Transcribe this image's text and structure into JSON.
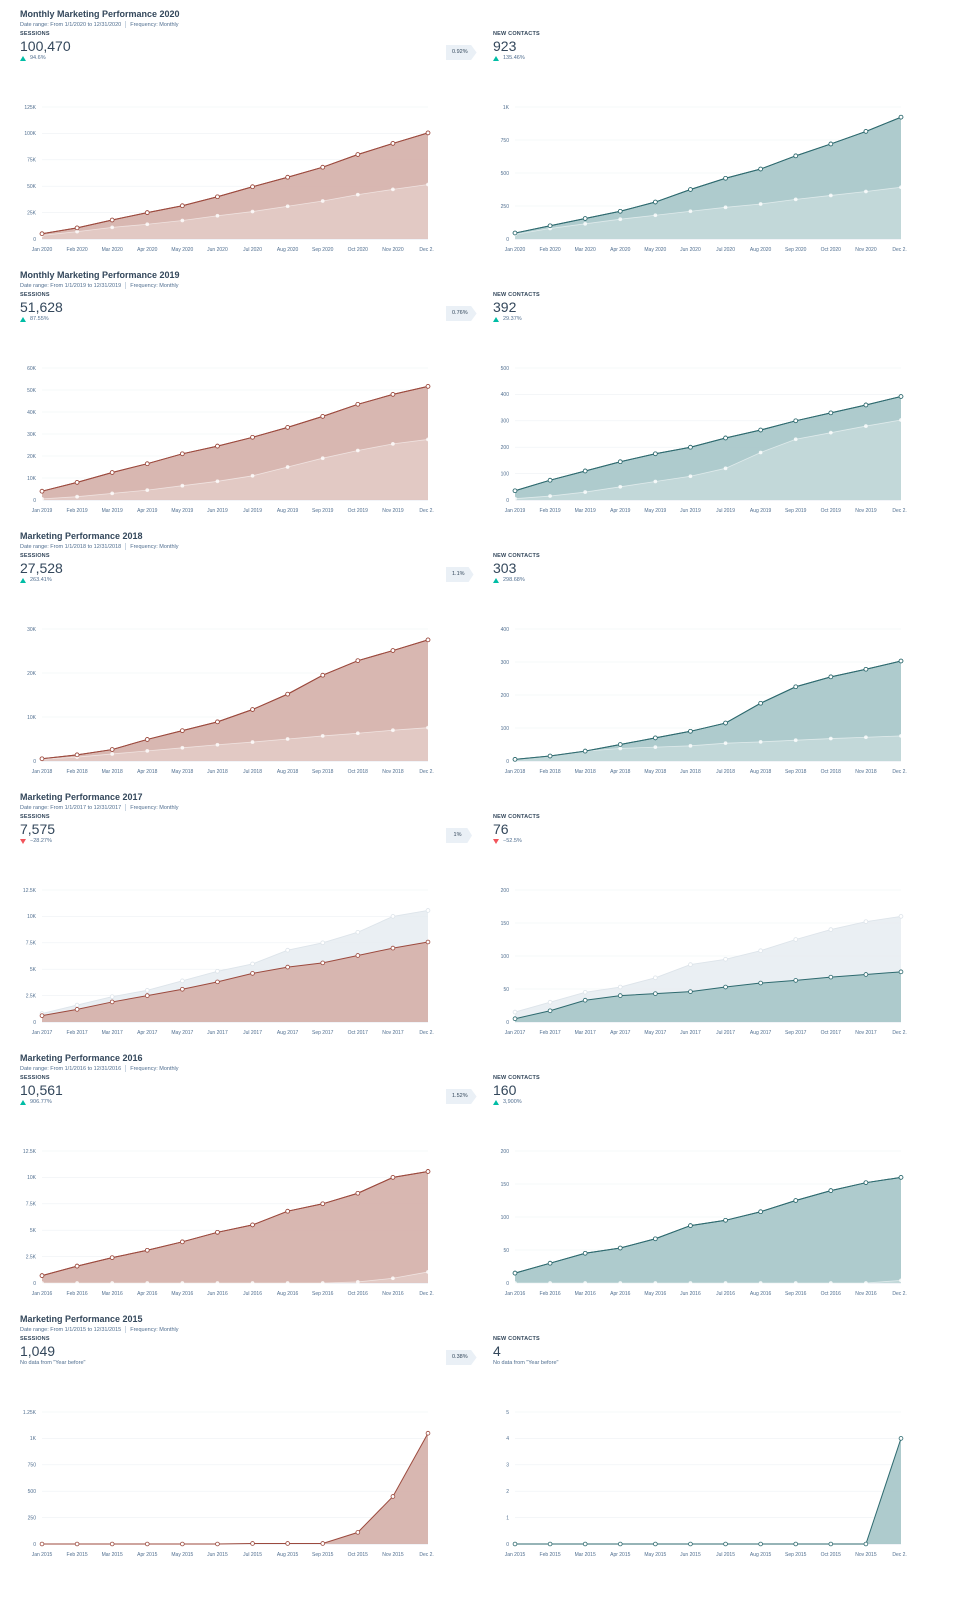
{
  "sections": [
    {
      "title": "Monthly Marketing Performance 2020",
      "date_range": "Date range: From 1/1/2020 to 12/31/2020",
      "frequency": "Frequency: Monthly",
      "badge": "0.92%",
      "left": {
        "label": "SESSIONS",
        "value": "100,470",
        "change": "94.6%",
        "trend": "up"
      },
      "right": {
        "label": "NEW CONTACTS",
        "value": "923",
        "change": "135.46%",
        "trend": "up"
      }
    },
    {
      "title": "Monthly Marketing Performance 2019",
      "date_range": "Date range: From 1/1/2019 to 12/31/2019",
      "frequency": "Frequency: Monthly",
      "badge": "0.76%",
      "left": {
        "label": "SESSIONS",
        "value": "51,628",
        "change": "87.55%",
        "trend": "up"
      },
      "right": {
        "label": "NEW CONTACTS",
        "value": "392",
        "change": "29.37%",
        "trend": "up"
      }
    },
    {
      "title": "Marketing Performance 2018",
      "date_range": "Date range: From 1/1/2018 to 12/31/2018",
      "frequency": "Frequency: Monthly",
      "badge": "1.1%",
      "left": {
        "label": "SESSIONS",
        "value": "27,528",
        "change": "263.41%",
        "trend": "up"
      },
      "right": {
        "label": "NEW CONTACTS",
        "value": "303",
        "change": "298.68%",
        "trend": "up"
      }
    },
    {
      "title": "Marketing Performance 2017",
      "date_range": "Date range: From 1/1/2017 to 12/31/2017",
      "frequency": "Frequency: Monthly",
      "badge": "1%",
      "left": {
        "label": "SESSIONS",
        "value": "7,575",
        "change": "−28.27%",
        "trend": "down"
      },
      "right": {
        "label": "NEW CONTACTS",
        "value": "76",
        "change": "−52.5%",
        "trend": "down"
      }
    },
    {
      "title": "Marketing Performance 2016",
      "date_range": "Date range: From 1/1/2016 to 12/31/2016",
      "frequency": "Frequency: Monthly",
      "badge": "1.52%",
      "left": {
        "label": "SESSIONS",
        "value": "10,561",
        "change": "906.77%",
        "trend": "up"
      },
      "right": {
        "label": "NEW CONTACTS",
        "value": "160",
        "change": "3,900%",
        "trend": "up"
      }
    },
    {
      "title": "Marketing Performance 2015",
      "date_range": "Date range: From 1/1/2015 to 12/31/2015",
      "frequency": "Frequency: Monthly",
      "badge": "0.38%",
      "left": {
        "label": "SESSIONS",
        "value": "1,049",
        "change": "No data from \"Year before\"",
        "trend": "none"
      },
      "right": {
        "label": "NEW CONTACTS",
        "value": "4",
        "change": "No data from \"Year before\"",
        "trend": "none"
      }
    }
  ],
  "colors": {
    "sessions_line": "#9c4a3e",
    "sessions_fill": "#d5b1aa",
    "contacts_line": "#2e6a6f",
    "contacts_fill": "#a7c7c9",
    "prior_fill": "#e6ecf1",
    "prior_line": "#dde4ea",
    "text": "#33475b",
    "up": "#00bda5",
    "down": "#f2545b"
  },
  "chart_data": [
    {
      "type": "area",
      "title": "",
      "series_color": "sessions",
      "categories": [
        "Jan 2020",
        "Feb 2020",
        "Mar 2020",
        "Apr 2020",
        "May 2020",
        "Jun 2020",
        "Jul 2020",
        "Aug 2020",
        "Sep 2020",
        "Oct 2020",
        "Nov 2020",
        "Dec 2..."
      ],
      "yticks": [
        "0",
        "25K",
        "50K",
        "75K",
        "100K",
        "125K"
      ],
      "ylim": [
        0,
        125000
      ],
      "series": [
        {
          "values": [
            5000,
            10500,
            18000,
            25000,
            31500,
            40000,
            49500,
            58500,
            68000,
            80000,
            90500,
            100470
          ]
        },
        {
          "values": [
            3500,
            7000,
            11000,
            14000,
            17500,
            22000,
            26000,
            31000,
            36000,
            42000,
            47000,
            51628
          ]
        }
      ],
      "current_on_top": true
    },
    {
      "type": "area",
      "title": "",
      "series_color": "contacts",
      "categories": [
        "Jan 2020",
        "Feb 2020",
        "Mar 2020",
        "Apr 2020",
        "May 2020",
        "Jun 2020",
        "Jul 2020",
        "Aug 2020",
        "Sep 2020",
        "Oct 2020",
        "Nov 2020",
        "Dec 2..."
      ],
      "yticks": [
        "0",
        "250",
        "500",
        "750",
        "1K"
      ],
      "ylim": [
        0,
        1000
      ],
      "series": [
        {
          "values": [
            45,
            100,
            155,
            210,
            280,
            375,
            460,
            530,
            630,
            720,
            815,
            923
          ]
        },
        {
          "values": [
            35,
            80,
            115,
            150,
            180,
            210,
            240,
            265,
            300,
            330,
            360,
            392
          ]
        }
      ],
      "current_on_top": true
    },
    {
      "type": "area",
      "title": "",
      "series_color": "sessions",
      "categories": [
        "Jan 2019",
        "Feb 2019",
        "Mar 2019",
        "Apr 2019",
        "May 2019",
        "Jun 2019",
        "Jul 2019",
        "Aug 2019",
        "Sep 2019",
        "Oct 2019",
        "Nov 2019",
        "Dec 2..."
      ],
      "yticks": [
        "0",
        "10K",
        "20K",
        "30K",
        "40K",
        "50K",
        "60K"
      ],
      "ylim": [
        0,
        60000
      ],
      "series": [
        {
          "values": [
            4000,
            8000,
            12500,
            16500,
            21000,
            24500,
            28500,
            33000,
            38000,
            43500,
            48000,
            51628
          ]
        },
        {
          "values": [
            500,
            1500,
            3000,
            4500,
            6500,
            8500,
            11000,
            15000,
            19000,
            22500,
            25500,
            27528
          ]
        }
      ],
      "current_on_top": true
    },
    {
      "type": "area",
      "title": "",
      "series_color": "contacts",
      "categories": [
        "Jan 2019",
        "Feb 2019",
        "Mar 2019",
        "Apr 2019",
        "May 2019",
        "Jun 2019",
        "Jul 2019",
        "Aug 2019",
        "Sep 2019",
        "Oct 2019",
        "Nov 2019",
        "Dec 2..."
      ],
      "yticks": [
        "0",
        "100",
        "200",
        "300",
        "400",
        "500"
      ],
      "ylim": [
        0,
        500
      ],
      "series": [
        {
          "values": [
            35,
            75,
            110,
            145,
            175,
            200,
            235,
            265,
            300,
            330,
            360,
            392
          ]
        },
        {
          "values": [
            5,
            15,
            30,
            50,
            70,
            90,
            120,
            180,
            230,
            255,
            280,
            303
          ]
        }
      ],
      "current_on_top": true
    },
    {
      "type": "area",
      "title": "",
      "series_color": "sessions",
      "categories": [
        "Jan 2018",
        "Feb 2018",
        "Mar 2018",
        "Apr 2018",
        "May 2018",
        "Jun 2018",
        "Jul 2018",
        "Aug 2018",
        "Sep 2018",
        "Oct 2018",
        "Nov 2018",
        "Dec 2..."
      ],
      "yticks": [
        "0",
        "10K",
        "20K",
        "30K"
      ],
      "ylim": [
        0,
        30000
      ],
      "series": [
        {
          "values": [
            500,
            1400,
            2600,
            4900,
            6900,
            8900,
            11700,
            15200,
            19500,
            22800,
            25100,
            27528
          ]
        },
        {
          "values": [
            400,
            900,
            1600,
            2300,
            3000,
            3700,
            4300,
            5000,
            5700,
            6300,
            7000,
            7575
          ]
        }
      ],
      "current_on_top": true
    },
    {
      "type": "area",
      "title": "",
      "series_color": "contacts",
      "categories": [
        "Jan 2018",
        "Feb 2018",
        "Mar 2018",
        "Apr 2018",
        "May 2018",
        "Jun 2018",
        "Jul 2018",
        "Aug 2018",
        "Sep 2018",
        "Oct 2018",
        "Nov 2018",
        "Dec 2..."
      ],
      "yticks": [
        "0",
        "100",
        "200",
        "300",
        "400"
      ],
      "ylim": [
        0,
        400
      ],
      "series": [
        {
          "values": [
            5,
            15,
            30,
            50,
            70,
            90,
            115,
            175,
            225,
            255,
            278,
            303
          ]
        },
        {
          "values": [
            5,
            15,
            30,
            38,
            42,
            46,
            54,
            58,
            63,
            68,
            72,
            76
          ]
        }
      ],
      "current_on_top": true
    },
    {
      "type": "area",
      "title": "",
      "series_color": "sessions",
      "categories": [
        "Jan 2017",
        "Feb 2017",
        "Mar 2017",
        "Apr 2017",
        "May 2017",
        "Jun 2017",
        "Jul 2017",
        "Aug 2017",
        "Sep 2017",
        "Oct 2017",
        "Nov 2017",
        "Dec 2..."
      ],
      "yticks": [
        "0",
        "2.5K",
        "5K",
        "7.5K",
        "10K",
        "12.5K"
      ],
      "ylim": [
        0,
        12500
      ],
      "series": [
        {
          "values": [
            600,
            1200,
            1900,
            2500,
            3100,
            3800,
            4600,
            5200,
            5600,
            6300,
            7000,
            7575
          ]
        },
        {
          "values": [
            800,
            1600,
            2400,
            3000,
            3900,
            4800,
            5500,
            6800,
            7500,
            8500,
            10000,
            10561
          ]
        }
      ],
      "current_on_top": false
    },
    {
      "type": "area",
      "title": "",
      "series_color": "contacts",
      "categories": [
        "Jan 2017",
        "Feb 2017",
        "Mar 2017",
        "Apr 2017",
        "May 2017",
        "Jun 2017",
        "Jul 2017",
        "Aug 2017",
        "Sep 2017",
        "Oct 2017",
        "Nov 2017",
        "Dec 2..."
      ],
      "yticks": [
        "0",
        "50",
        "100",
        "150",
        "200"
      ],
      "ylim": [
        0,
        200
      ],
      "series": [
        {
          "values": [
            5,
            17,
            33,
            40,
            43,
            46,
            53,
            59,
            63,
            68,
            72,
            76
          ]
        },
        {
          "values": [
            15,
            30,
            45,
            53,
            67,
            87,
            95,
            108,
            125,
            140,
            152,
            160
          ]
        }
      ],
      "current_on_top": false
    },
    {
      "type": "area",
      "title": "",
      "series_color": "sessions",
      "categories": [
        "Jan 2016",
        "Feb 2016",
        "Mar 2016",
        "Apr 2016",
        "May 2016",
        "Jun 2016",
        "Jul 2016",
        "Aug 2016",
        "Sep 2016",
        "Oct 2016",
        "Nov 2016",
        "Dec 2..."
      ],
      "yticks": [
        "0",
        "2.5K",
        "5K",
        "7.5K",
        "10K",
        "12.5K"
      ],
      "ylim": [
        0,
        12500
      ],
      "series": [
        {
          "values": [
            700,
            1600,
            2400,
            3100,
            3900,
            4800,
            5500,
            6800,
            7500,
            8500,
            10000,
            10561
          ]
        },
        {
          "values": [
            0,
            0,
            0,
            0,
            0,
            0,
            0,
            0,
            0,
            100,
            450,
            1049
          ]
        }
      ],
      "current_on_top": true
    },
    {
      "type": "area",
      "title": "",
      "series_color": "contacts",
      "categories": [
        "Jan 2016",
        "Feb 2016",
        "Mar 2016",
        "Apr 2016",
        "May 2016",
        "Jun 2016",
        "Jul 2016",
        "Aug 2016",
        "Sep 2016",
        "Oct 2016",
        "Nov 2016",
        "Dec 2..."
      ],
      "yticks": [
        "0",
        "50",
        "100",
        "150",
        "200"
      ],
      "ylim": [
        0,
        200
      ],
      "series": [
        {
          "values": [
            15,
            30,
            45,
            53,
            67,
            87,
            95,
            108,
            125,
            140,
            152,
            160
          ]
        },
        {
          "values": [
            0,
            0,
            0,
            0,
            0,
            0,
            0,
            0,
            0,
            0,
            0,
            4
          ]
        }
      ],
      "current_on_top": true
    },
    {
      "type": "area",
      "title": "",
      "series_color": "sessions",
      "categories": [
        "Jan 2015",
        "Feb 2015",
        "Mar 2015",
        "Apr 2015",
        "May 2015",
        "Jun 2015",
        "Jul 2015",
        "Aug 2015",
        "Sep 2015",
        "Oct 2015",
        "Nov 2015",
        "Dec 2..."
      ],
      "yticks": [
        "0",
        "250",
        "500",
        "750",
        "1K",
        "1.25K"
      ],
      "ylim": [
        0,
        1250
      ],
      "series": [
        {
          "values": [
            0,
            0,
            0,
            0,
            0,
            0,
            5,
            5,
            5,
            110,
            450,
            1049
          ]
        }
      ],
      "current_on_top": true
    },
    {
      "type": "area",
      "title": "",
      "series_color": "contacts",
      "categories": [
        "Jan 2015",
        "Feb 2015",
        "Mar 2015",
        "Apr 2015",
        "May 2015",
        "Jun 2015",
        "Jul 2015",
        "Aug 2015",
        "Sep 2015",
        "Oct 2015",
        "Nov 2015",
        "Dec 2..."
      ],
      "yticks": [
        "0",
        "1",
        "2",
        "3",
        "4",
        "5"
      ],
      "ylim": [
        0,
        5
      ],
      "series": [
        {
          "values": [
            0,
            0,
            0,
            0,
            0,
            0,
            0,
            0,
            0,
            0,
            0,
            4
          ]
        }
      ],
      "current_on_top": true
    }
  ]
}
